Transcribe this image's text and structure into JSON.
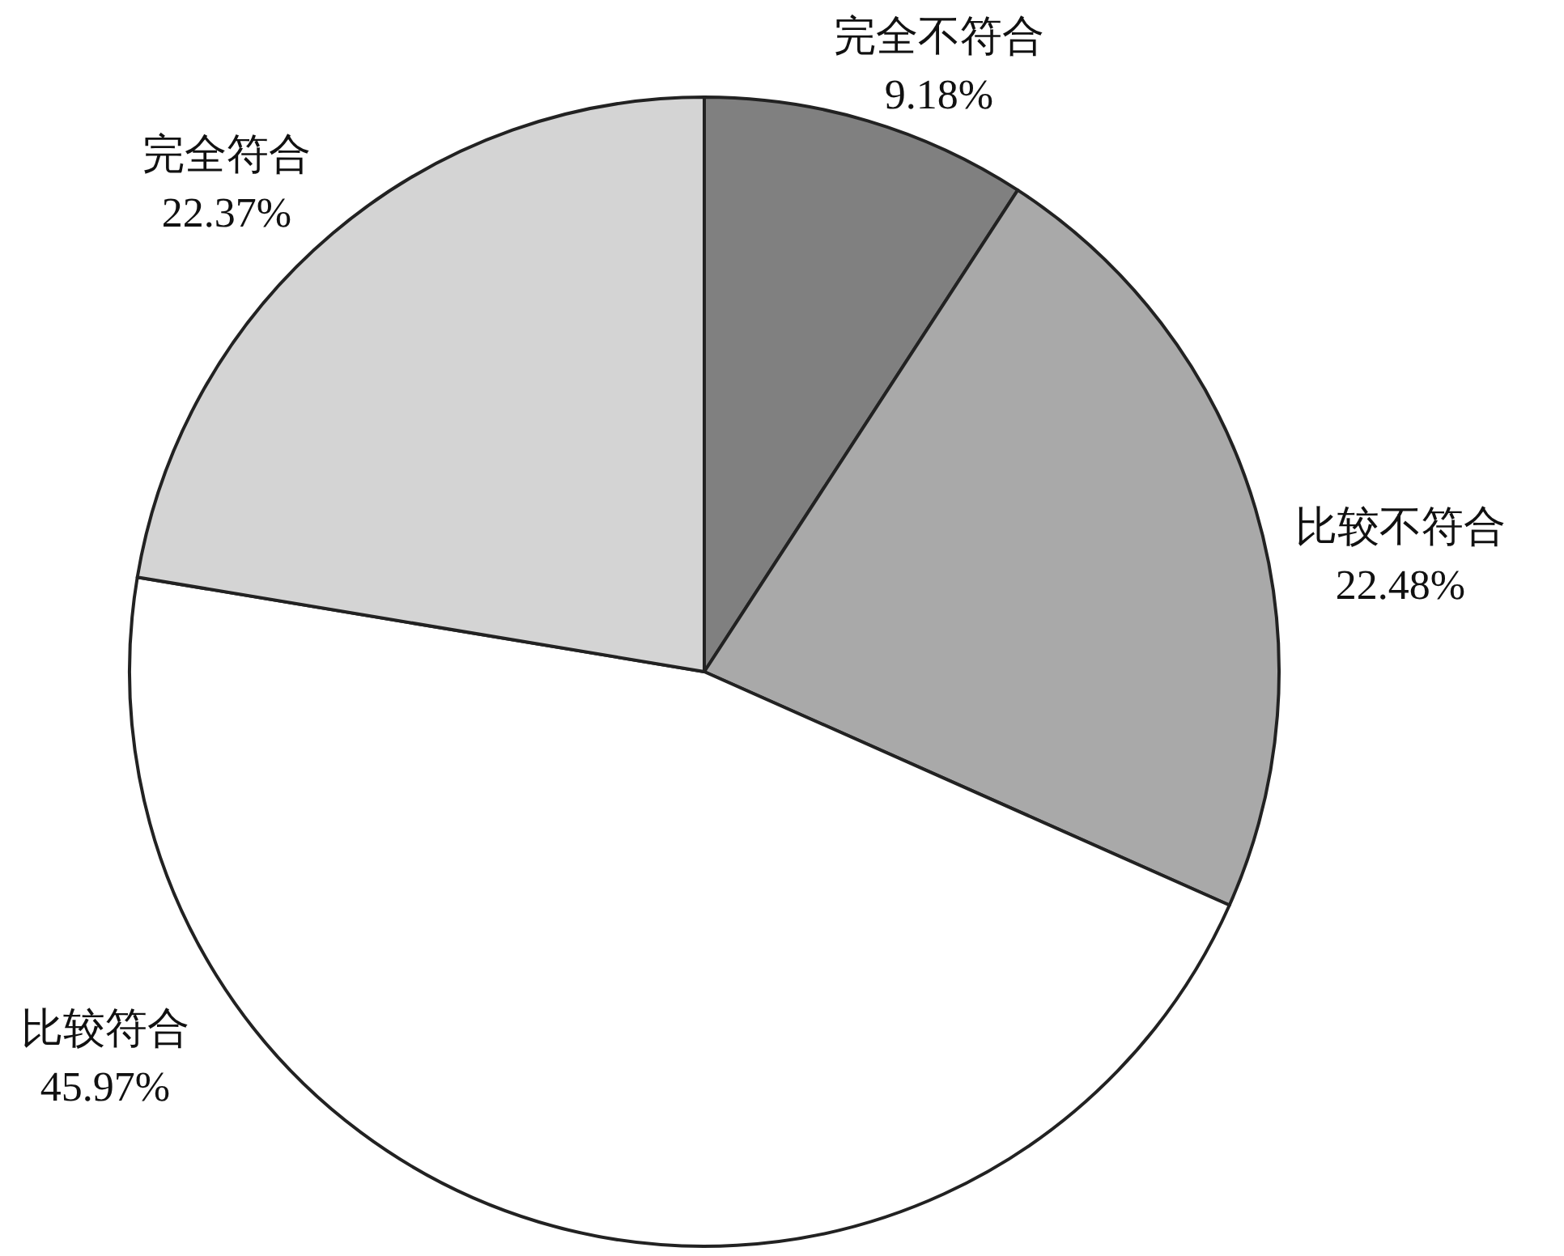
{
  "chart_data": {
    "type": "pie",
    "categories": [
      "完全不符合",
      "比较不符合",
      "比较符合",
      "完全符合"
    ],
    "values": [
      9.18,
      22.48,
      45.97,
      22.37
    ],
    "colors": [
      "#808080",
      "#a9a9a9",
      "#ffffff",
      "#d4d4d4"
    ],
    "value_labels": [
      "9.18%",
      "22.48%",
      "45.97%",
      "22.37%"
    ],
    "legend": false
  }
}
